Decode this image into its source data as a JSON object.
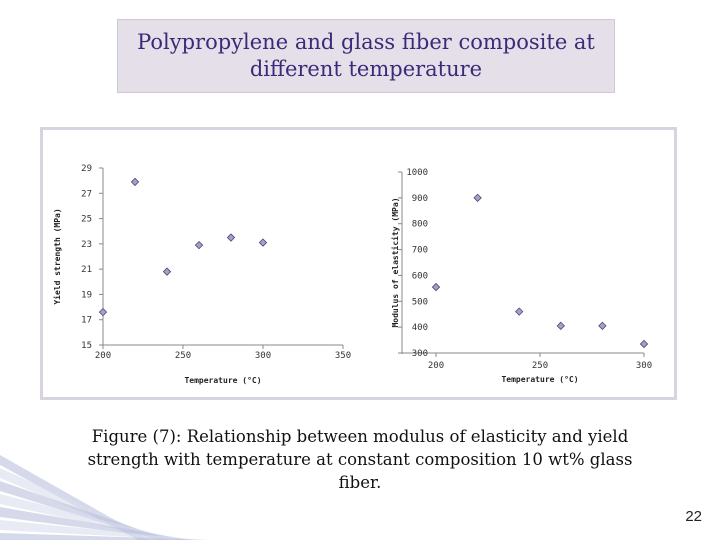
{
  "slide": {
    "title": "Polypropylene and glass fiber composite at\ndifferent temperature",
    "caption": "Figure (7): Relationship between  modulus of elasticity and yield strength with temperature at constant composition 10 wt% glass fiber.",
    "page_number": "22"
  },
  "colors": {
    "title_bg": "#e4dfe9",
    "title_text": "#3b2a78",
    "panel_border": "#d9d2e0",
    "marker_fill": "#a6a1c4",
    "marker_stroke": "#4a4577"
  },
  "chart_data": [
    {
      "type": "scatter",
      "title": "",
      "xlabel": "Temperature (°C)",
      "ylabel": "Yield strength (MPa)",
      "xlim": [
        200,
        350
      ],
      "ylim": [
        15,
        29
      ],
      "xticks": [
        "200",
        "250",
        "300",
        "350"
      ],
      "yticks": [
        "15",
        "17",
        "19",
        "21",
        "23",
        "25",
        "27",
        "29"
      ],
      "x": [
        200,
        220,
        240,
        260,
        280,
        300
      ],
      "y": [
        17.6,
        27.9,
        20.8,
        22.9,
        23.5,
        23.1
      ],
      "marker": "diamond",
      "grid": false,
      "legend": "none"
    },
    {
      "type": "scatter",
      "title": "",
      "xlabel": "Temperature (°C)",
      "ylabel": "Modulus of elasticity (MPa)",
      "xlim": [
        200,
        300
      ],
      "ylim": [
        300,
        1000
      ],
      "xticks": [
        "200",
        "250",
        "300"
      ],
      "yticks": [
        "300",
        "400",
        "500",
        "600",
        "700",
        "800",
        "900",
        "1000"
      ],
      "x": [
        200,
        220,
        240,
        260,
        280,
        300
      ],
      "y": [
        555,
        900,
        460,
        405,
        405,
        335
      ],
      "marker": "diamond",
      "grid": false,
      "legend": "none"
    }
  ]
}
